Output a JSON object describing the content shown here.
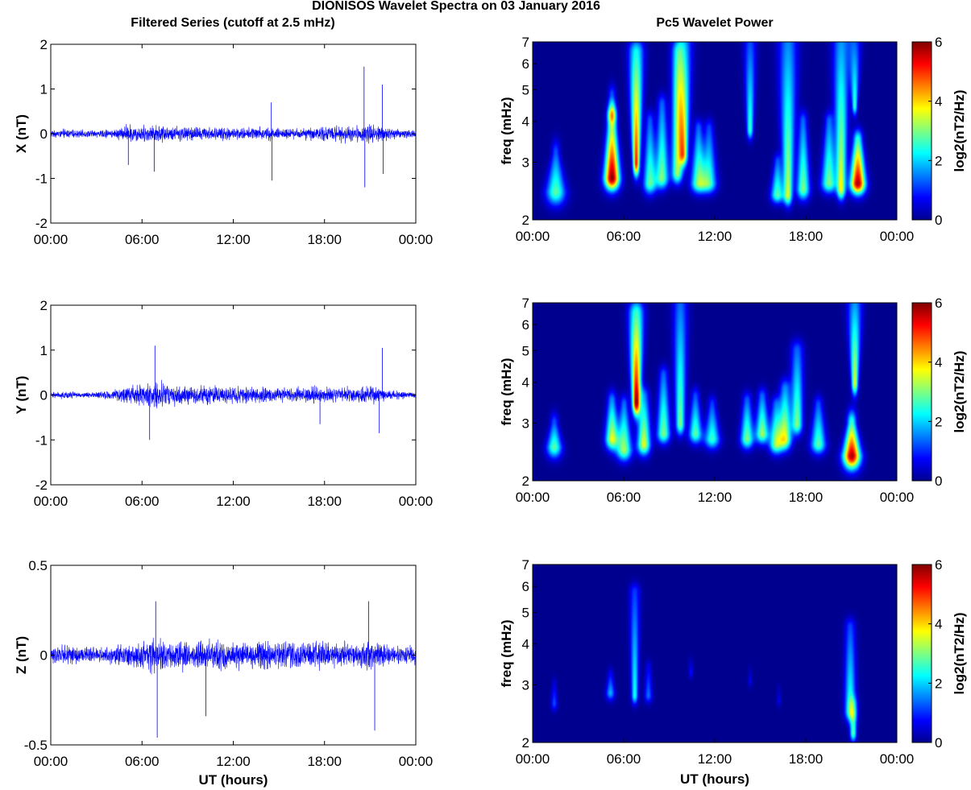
{
  "title": "DIONISOS Wavelet Spectra on 03 January 2016",
  "left_column_title": "Filtered Series (cutoff at 2.5 mHz)",
  "right_column_title": "Pc5 Wavelet Power",
  "colors": {
    "series": "#0000ff",
    "spectrogram_background": "#00008f"
  },
  "chart_data": [
    {
      "type": "line",
      "name": "x-series",
      "ylabel": "X (nT)",
      "xlabel": "",
      "x_ticks": [
        "00:00",
        "06:00",
        "12:00",
        "18:00",
        "00:00"
      ],
      "xlim_hours": [
        0,
        24
      ],
      "ylim": [
        -2,
        2
      ],
      "y_ticks": [
        -2,
        -1,
        0,
        1,
        2
      ],
      "y_tick_labels": [
        "-2",
        "-1",
        "0",
        "1",
        "2"
      ],
      "base_amplitude": 0.1,
      "envelope": [
        [
          0,
          0.6
        ],
        [
          1,
          0.8
        ],
        [
          2,
          0.6
        ],
        [
          3,
          0.6
        ],
        [
          4,
          0.8
        ],
        [
          5,
          1.6
        ],
        [
          6,
          1.4
        ],
        [
          7,
          1.5
        ],
        [
          8,
          1.3
        ],
        [
          9,
          1.4
        ],
        [
          10,
          1.2
        ],
        [
          11,
          1.1
        ],
        [
          12,
          1.2
        ],
        [
          13,
          1.1
        ],
        [
          14,
          1.3
        ],
        [
          15,
          1.0
        ],
        [
          16,
          0.9
        ],
        [
          17,
          1.1
        ],
        [
          18,
          1.3
        ],
        [
          19,
          1.5
        ],
        [
          20,
          1.2
        ],
        [
          21,
          1.7
        ],
        [
          22,
          1.2
        ],
        [
          23,
          0.8
        ],
        [
          24,
          0.7
        ]
      ],
      "spikes": [
        [
          5.1,
          -0.7
        ],
        [
          6.8,
          -0.85
        ],
        [
          14.5,
          0.7
        ],
        [
          14.55,
          -1.05
        ],
        [
          20.6,
          1.5
        ],
        [
          20.65,
          -1.2
        ],
        [
          21.8,
          1.1
        ],
        [
          21.85,
          -0.9
        ]
      ]
    },
    {
      "type": "line",
      "name": "y-series",
      "ylabel": "Y (nT)",
      "xlabel": "",
      "x_ticks": [
        "00:00",
        "06:00",
        "12:00",
        "18:00",
        "00:00"
      ],
      "xlim_hours": [
        0,
        24
      ],
      "ylim": [
        -2,
        2
      ],
      "y_ticks": [
        -2,
        -1,
        0,
        1,
        2
      ],
      "y_tick_labels": [
        "-2",
        "-1",
        "0",
        "1",
        "2"
      ],
      "base_amplitude": 0.1,
      "envelope": [
        [
          0,
          0.6
        ],
        [
          1,
          0.7
        ],
        [
          2,
          0.5
        ],
        [
          3,
          0.5
        ],
        [
          4,
          0.8
        ],
        [
          5,
          1.5
        ],
        [
          6,
          2.0
        ],
        [
          7,
          2.3
        ],
        [
          8,
          1.8
        ],
        [
          9,
          1.6
        ],
        [
          10,
          1.7
        ],
        [
          11,
          1.6
        ],
        [
          12,
          1.6
        ],
        [
          13,
          1.4
        ],
        [
          14,
          1.4
        ],
        [
          15,
          1.2
        ],
        [
          16,
          1.2
        ],
        [
          17,
          1.5
        ],
        [
          18,
          1.4
        ],
        [
          19,
          1.2
        ],
        [
          20,
          1.3
        ],
        [
          21,
          1.8
        ],
        [
          22,
          1.0
        ],
        [
          23,
          0.7
        ],
        [
          24,
          0.6
        ]
      ],
      "spikes": [
        [
          6.85,
          1.1
        ],
        [
          6.5,
          -1.0
        ],
        [
          17.7,
          -0.65
        ],
        [
          21.8,
          1.05
        ],
        [
          21.6,
          -0.85
        ]
      ]
    },
    {
      "type": "line",
      "name": "z-series",
      "ylabel": "Z (nT)",
      "xlabel": "UT (hours)",
      "x_ticks": [
        "00:00",
        "06:00",
        "12:00",
        "18:00",
        "00:00"
      ],
      "xlim_hours": [
        0,
        24
      ],
      "ylim": [
        -0.5,
        0.5
      ],
      "y_ticks": [
        -0.5,
        0,
        0.5
      ],
      "y_tick_labels": [
        "-0.5",
        "0",
        "0.5"
      ],
      "base_amplitude": 0.035,
      "envelope": [
        [
          0,
          1.0
        ],
        [
          1,
          1.3
        ],
        [
          2,
          1.0
        ],
        [
          3,
          1.0
        ],
        [
          4,
          1.1
        ],
        [
          5,
          1.5
        ],
        [
          6,
          1.9
        ],
        [
          7,
          2.1
        ],
        [
          8,
          1.8
        ],
        [
          9,
          1.8
        ],
        [
          10,
          1.7
        ],
        [
          11,
          1.8
        ],
        [
          12,
          1.7
        ],
        [
          13,
          1.7
        ],
        [
          14,
          1.8
        ],
        [
          15,
          1.7
        ],
        [
          16,
          1.6
        ],
        [
          17,
          1.8
        ],
        [
          18,
          1.6
        ],
        [
          19,
          1.5
        ],
        [
          20,
          1.4
        ],
        [
          21,
          1.8
        ],
        [
          22,
          1.4
        ],
        [
          23,
          1.2
        ],
        [
          24,
          1.1
        ]
      ],
      "spikes": [
        [
          6.9,
          0.3
        ],
        [
          7.0,
          -0.46
        ],
        [
          10.2,
          -0.34
        ],
        [
          20.9,
          0.3
        ],
        [
          21.3,
          -0.42
        ]
      ]
    },
    {
      "type": "heatmap",
      "name": "x-wavelet-power",
      "ylabel": "freq (mHz)",
      "xlabel": "",
      "colorbar_label": "log2(nT2/Hz)",
      "x_ticks": [
        "00:00",
        "06:00",
        "12:00",
        "18:00",
        "00:00"
      ],
      "xlim_hours": [
        0,
        24
      ],
      "y_scale": "log",
      "ylim_mHz": [
        2,
        7
      ],
      "y_ticks": [
        2,
        3,
        4,
        5,
        6,
        7
      ],
      "clim": [
        0,
        6
      ],
      "colorbar_ticks": [
        0,
        2,
        4,
        6
      ],
      "blobs": [
        [
          1.5,
          2.45,
          3.2,
          0.45,
          0.2,
          0.8,
          2.8
        ],
        [
          5.2,
          2.7,
          4.0,
          0.35,
          0.22,
          0.7,
          6.0
        ],
        [
          5.2,
          4.3,
          4.8,
          0.2,
          0.18,
          0.6,
          2.8
        ],
        [
          6.8,
          3.0,
          6.5,
          0.15,
          0.35,
          0.8,
          5.2
        ],
        [
          7.7,
          2.6,
          4.0,
          0.3,
          0.2,
          0.6,
          2.8
        ],
        [
          8.5,
          2.7,
          4.5,
          0.3,
          0.22,
          0.6,
          3.0
        ],
        [
          9.5,
          2.8,
          6.5,
          0.25,
          0.28,
          0.6,
          3.2
        ],
        [
          9.9,
          3.2,
          7.0,
          0.2,
          0.4,
          0.7,
          4.0
        ],
        [
          10.9,
          2.6,
          3.8,
          0.35,
          0.2,
          0.5,
          3.0
        ],
        [
          11.6,
          2.6,
          3.8,
          0.35,
          0.22,
          0.5,
          2.6
        ],
        [
          14.3,
          3.8,
          7.0,
          0.15,
          0.3,
          0.5,
          2.6
        ],
        [
          16.1,
          2.4,
          3.0,
          0.3,
          0.18,
          0.4,
          2.8
        ],
        [
          16.8,
          2.4,
          7.0,
          0.2,
          0.45,
          0.6,
          3.4
        ],
        [
          17.8,
          2.5,
          4.0,
          0.3,
          0.2,
          0.6,
          3.0
        ],
        [
          19.5,
          2.6,
          4.0,
          0.35,
          0.2,
          0.5,
          3.0
        ],
        [
          20.3,
          2.5,
          7.0,
          0.2,
          0.4,
          0.6,
          3.6
        ],
        [
          21.4,
          2.6,
          3.5,
          0.35,
          0.22,
          0.6,
          5.8
        ],
        [
          21.2,
          4.5,
          7.0,
          0.12,
          0.3,
          0.5,
          2.6
        ]
      ]
    },
    {
      "type": "heatmap",
      "name": "y-wavelet-power",
      "ylabel": "freq (mHz)",
      "xlabel": "",
      "colorbar_label": "log2(nT2/Hz)",
      "x_ticks": [
        "00:00",
        "06:00",
        "12:00",
        "18:00",
        "00:00"
      ],
      "xlim_hours": [
        0,
        24
      ],
      "y_scale": "log",
      "ylim_mHz": [
        2,
        7
      ],
      "y_ticks": [
        2,
        3,
        4,
        5,
        6,
        7
      ],
      "clim": [
        0,
        6
      ],
      "colorbar_ticks": [
        0,
        2,
        4,
        6
      ],
      "blobs": [
        [
          1.4,
          2.55,
          3.0,
          0.35,
          0.2,
          0.6,
          2.8
        ],
        [
          5.2,
          2.7,
          3.5,
          0.3,
          0.22,
          0.6,
          3.6
        ],
        [
          6.0,
          2.5,
          3.4,
          0.35,
          0.2,
          0.6,
          3.2
        ],
        [
          6.8,
          3.5,
          6.5,
          0.18,
          0.35,
          0.8,
          5.8
        ],
        [
          7.3,
          2.6,
          3.6,
          0.3,
          0.25,
          0.6,
          3.6
        ],
        [
          8.6,
          2.8,
          4.2,
          0.3,
          0.22,
          0.5,
          3.0
        ],
        [
          9.7,
          3.0,
          7.0,
          0.2,
          0.35,
          0.6,
          3.0
        ],
        [
          10.7,
          2.8,
          3.6,
          0.3,
          0.2,
          0.5,
          2.8
        ],
        [
          11.8,
          2.7,
          3.4,
          0.35,
          0.2,
          0.5,
          2.6
        ],
        [
          14.1,
          2.7,
          3.5,
          0.3,
          0.22,
          0.5,
          3.0
        ],
        [
          15.1,
          2.8,
          3.6,
          0.3,
          0.22,
          0.5,
          3.2
        ],
        [
          16.0,
          2.6,
          3.4,
          0.3,
          0.22,
          0.5,
          3.0
        ],
        [
          16.6,
          2.7,
          3.8,
          0.3,
          0.25,
          0.6,
          3.6
        ],
        [
          17.4,
          3.0,
          5.0,
          0.25,
          0.3,
          0.6,
          3.0
        ],
        [
          18.8,
          2.6,
          3.4,
          0.35,
          0.22,
          0.5,
          2.8
        ],
        [
          21.0,
          2.4,
          3.0,
          0.4,
          0.22,
          0.8,
          5.8
        ],
        [
          21.2,
          4.0,
          7.0,
          0.15,
          0.35,
          0.7,
          3.6
        ]
      ]
    },
    {
      "type": "heatmap",
      "name": "z-wavelet-power",
      "ylabel": "freq (mHz)",
      "xlabel": "UT (hours)",
      "colorbar_label": "log2(nT2/Hz)",
      "x_ticks": [
        "00:00",
        "06:00",
        "12:00",
        "18:00",
        "00:00"
      ],
      "xlim_hours": [
        0,
        24
      ],
      "y_scale": "log",
      "ylim_mHz": [
        2,
        7
      ],
      "y_ticks": [
        2,
        3,
        4,
        5,
        6,
        7
      ],
      "clim": [
        0,
        6
      ],
      "colorbar_ticks": [
        0,
        2,
        4,
        6
      ],
      "blobs": [
        [
          1.4,
          2.65,
          3.0,
          0.15,
          0.12,
          0.3,
          1.2
        ],
        [
          5.1,
          2.85,
          3.2,
          0.2,
          0.15,
          0.3,
          1.8
        ],
        [
          6.7,
          2.8,
          5.8,
          0.15,
          0.25,
          0.4,
          2.4
        ],
        [
          7.6,
          2.8,
          3.4,
          0.18,
          0.15,
          0.3,
          1.4
        ],
        [
          10.4,
          3.3,
          3.5,
          0.1,
          0.12,
          0.2,
          0.8
        ],
        [
          14.3,
          3.1,
          3.3,
          0.1,
          0.1,
          0.2,
          0.6
        ],
        [
          16.2,
          2.7,
          2.9,
          0.1,
          0.1,
          0.2,
          0.6
        ],
        [
          20.9,
          2.5,
          4.5,
          0.25,
          0.25,
          0.5,
          2.6
        ],
        [
          21.1,
          2.15,
          2.6,
          0.15,
          0.2,
          0.4,
          2.8
        ]
      ]
    }
  ]
}
